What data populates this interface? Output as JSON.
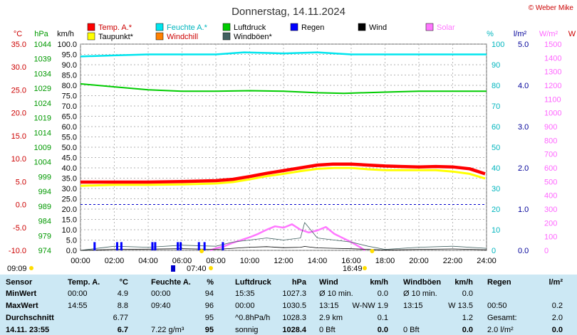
{
  "header": {
    "title": "Donnerstag, 14.11.2024",
    "copyright": "© Weber Mike"
  },
  "legend": [
    {
      "label": "Temp. A.*",
      "color": "#ff0000"
    },
    {
      "label": "Feuchte A.*",
      "color": "#00e5ee"
    },
    {
      "label": "Luftdruck",
      "color": "#00cc00"
    },
    {
      "label": "Regen",
      "color": "#0000ff"
    },
    {
      "label": "Wind",
      "color": "#000000"
    },
    {
      "label": "Solar",
      "color": "#ff77ff"
    },
    {
      "label": "Taupunkt*",
      "color": "#ffff00"
    },
    {
      "label": "Windchill",
      "color": "#ff8000"
    },
    {
      "label": "Windböen*",
      "color": "#406060"
    }
  ],
  "axis_units": {
    "temp": "°C",
    "pressure": "hPa",
    "wind": "km/h",
    "humidity": "%",
    "rain": "l/m²",
    "solar": "W/m²",
    "extra": "W"
  },
  "axis_ticks": {
    "temp": [
      "35.0",
      "30.0",
      "25.0",
      "20.0",
      "15.0",
      "10.0",
      "5.0",
      "0.0",
      "-5.0",
      "-10.0"
    ],
    "pressure": [
      "1044",
      "1039",
      "1034",
      "1029",
      "1024",
      "1019",
      "1014",
      "1009",
      "1004",
      "999",
      "994",
      "989",
      "984",
      "979",
      "974"
    ],
    "wind": [
      "100.0",
      "95.0",
      "90.0",
      "85.0",
      "80.0",
      "75.0",
      "70.0",
      "65.0",
      "60.0",
      "55.0",
      "50.0",
      "45.0",
      "40.0",
      "35.0",
      "30.0",
      "25.0",
      "20.0",
      "15.0",
      "10.0",
      "5.0",
      "0.0"
    ],
    "humidity": [
      "100",
      "90",
      "80",
      "70",
      "60",
      "50",
      "40",
      "30",
      "20",
      "10",
      "0"
    ],
    "rain": [
      "5.0",
      "4.0",
      "3.0",
      "2.0",
      "1.0",
      "0.0"
    ],
    "solar": [
      "1500",
      "1400",
      "1300",
      "1200",
      "1100",
      "1000",
      "900",
      "800",
      "700",
      "600",
      "500",
      "400",
      "300",
      "200",
      "100",
      "0"
    ],
    "time": [
      "00:00",
      "02:00",
      "04:00",
      "06:00",
      "08:00",
      "10:00",
      "12:00",
      "14:00",
      "16:00",
      "18:00",
      "20:00",
      "22:00",
      "24:00"
    ]
  },
  "annotations": {
    "sunrise": "07:40",
    "sunset": "16:49",
    "last_update": "09:09"
  },
  "chart_data": {
    "type": "line",
    "x_label": "",
    "x_range": [
      "00:00",
      "24:00"
    ],
    "series": [
      {
        "name": "Temp. A.*",
        "axis": "°C",
        "color": "#ff0000",
        "x": [
          "00:00",
          "02:00",
          "04:00",
          "06:00",
          "08:00",
          "09:00",
          "10:00",
          "11:00",
          "12:00",
          "13:00",
          "14:00",
          "14:55",
          "16:00",
          "17:00",
          "18:00",
          "19:00",
          "20:00",
          "21:00",
          "22:00",
          "23:00",
          "23:55"
        ],
        "y": [
          4.9,
          4.9,
          4.9,
          5.0,
          5.2,
          5.5,
          6.1,
          6.8,
          7.4,
          8.0,
          8.6,
          8.8,
          8.8,
          8.6,
          8.4,
          8.3,
          8.2,
          8.3,
          8.2,
          7.8,
          6.7
        ]
      },
      {
        "name": "Taupunkt*",
        "axis": "°C",
        "color": "#ffff00",
        "x": [
          "00:00",
          "02:00",
          "04:00",
          "06:00",
          "08:00",
          "09:00",
          "10:00",
          "11:00",
          "12:00",
          "13:00",
          "14:00",
          "15:00",
          "16:00",
          "17:00",
          "18:00",
          "19:00",
          "20:00",
          "21:00",
          "22:00",
          "23:00",
          "23:55"
        ],
        "y": [
          4.4,
          4.6,
          4.6,
          4.7,
          4.9,
          5.2,
          5.8,
          6.5,
          7.0,
          7.6,
          8.1,
          8.3,
          8.3,
          8.0,
          7.8,
          7.8,
          7.8,
          7.8,
          7.5,
          7.0,
          6.0
        ]
      },
      {
        "name": "Feuchte A.*",
        "axis": "%",
        "color": "#00e5ee",
        "x": [
          "00:00",
          "02:00",
          "04:00",
          "06:00",
          "08:00",
          "09:40",
          "12:00",
          "14:00",
          "16:00",
          "18:00",
          "20:00",
          "22:00",
          "24:00"
        ],
        "y": [
          94,
          94.5,
          95,
          95,
          95,
          96,
          95.5,
          96,
          95,
          95,
          95,
          95,
          95
        ]
      },
      {
        "name": "Luftdruck",
        "axis": "hPa",
        "color": "#00cc00",
        "x": [
          "00:00",
          "02:00",
          "04:00",
          "06:00",
          "08:00",
          "10:00",
          "12:00",
          "14:00",
          "15:35",
          "18:00",
          "20:00",
          "22:00",
          "24:00"
        ],
        "y": [
          1030.5,
          1029.5,
          1028.5,
          1028,
          1028,
          1028.2,
          1028,
          1027.5,
          1027.3,
          1027.7,
          1028,
          1028,
          1028
        ]
      },
      {
        "name": "Wind",
        "axis": "km/h",
        "color": "#000000",
        "x": [
          "00:00",
          "02:00",
          "04:00",
          "06:00",
          "08:00",
          "09:00",
          "10:00",
          "11:00",
          "12:00",
          "13:00",
          "13:15",
          "14:00",
          "15:00",
          "16:00",
          "17:00",
          "18:00",
          "20:00",
          "22:00",
          "24:00"
        ],
        "y": [
          0,
          0.5,
          0.6,
          0.8,
          0.5,
          1.0,
          1.5,
          1.8,
          1.3,
          1.5,
          1.9,
          1.2,
          1.0,
          0.8,
          0.5,
          0.2,
          0.5,
          0.7,
          0.3
        ]
      },
      {
        "name": "Windböen*",
        "axis": "km/h",
        "color": "#406060",
        "x": [
          "00:00",
          "02:00",
          "04:00",
          "06:00",
          "08:00",
          "09:00",
          "10:00",
          "11:00",
          "12:00",
          "13:00",
          "13:15",
          "14:00",
          "15:00",
          "16:00",
          "17:00",
          "18:00",
          "20:00",
          "22:00",
          "24:00"
        ],
        "y": [
          0,
          2,
          1.5,
          2.5,
          2,
          4,
          5,
          6,
          5,
          6,
          13.5,
          6,
          5,
          4,
          2,
          0.5,
          1.5,
          2,
          1
        ]
      },
      {
        "name": "Solar",
        "axis": "W/m²",
        "color": "#ff77ff",
        "x": [
          "07:40",
          "08:00",
          "08:30",
          "09:00",
          "09:30",
          "10:00",
          "10:30",
          "11:00",
          "11:30",
          "12:00",
          "12:30",
          "13:00",
          "13:30",
          "14:00",
          "14:30",
          "15:00",
          "15:30",
          "16:00",
          "16:30",
          "16:49"
        ],
        "y": [
          0,
          15,
          30,
          55,
          75,
          95,
          120,
          150,
          175,
          165,
          190,
          150,
          130,
          145,
          170,
          120,
          90,
          60,
          25,
          0
        ]
      },
      {
        "name": "Regen",
        "axis": "l/m²",
        "color": "#0000ff",
        "type": "bar",
        "x": [
          "00:50",
          "02:10",
          "02:25",
          "04:15",
          "04:25",
          "05:45",
          "05:55",
          "07:00",
          "07:20",
          "08:25"
        ],
        "y": [
          0.2,
          0.2,
          0.2,
          0.2,
          0.2,
          0.2,
          0.2,
          0.2,
          0.2,
          0.2
        ]
      }
    ]
  },
  "stats": {
    "headers": [
      "Sensor",
      "Temp. A.",
      "°C",
      "Feuchte A.",
      "%",
      "Luftdruck",
      "hPa",
      "Wind",
      "km/h",
      "Windböen",
      "km/h",
      "Regen",
      "l/m²"
    ],
    "rows": [
      {
        "label": "MinWert",
        "c": [
          "00:00",
          "4.9",
          "00:00",
          "94",
          "15:35",
          "1027.3",
          "Ø 10 min.",
          "0.0",
          "Ø 10 min.",
          "0.0",
          "",
          ""
        ]
      },
      {
        "label": "MaxWert",
        "c": [
          "14:55",
          "8.8",
          "09:40",
          "96",
          "00:00",
          "1030.5",
          "13:15",
          "W-NW 1.9",
          "13:15",
          "W 13.5",
          "00:50",
          "0.2"
        ]
      },
      {
        "label": "Durchschnitt",
        "c": [
          "",
          "6.77",
          "",
          "95",
          "^0.8hPa/h",
          "1028.3",
          "2.9 km",
          "0.1",
          "",
          "1.2",
          "Gesamt:",
          "2.0"
        ]
      },
      {
        "label": "14.11. 23:55",
        "c": [
          "",
          "6.7",
          "7.22 g/m³",
          "95",
          "sonnig",
          "1028.4",
          "0 Bft",
          "0.0",
          "0 Bft",
          "0.0",
          "2.0 l/m²",
          "0.0"
        ]
      }
    ]
  }
}
